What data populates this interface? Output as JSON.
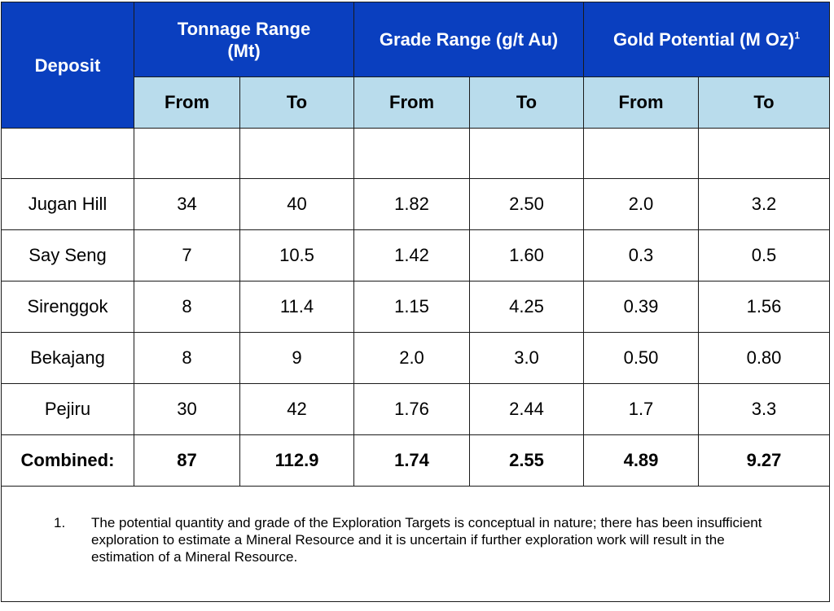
{
  "headers": {
    "deposit": "Deposit",
    "tonnage": "Tonnage Range (Mt)",
    "grade": "Grade Range (g/t Au)",
    "gold": "Gold Potential (M Oz)",
    "gold_sup": "1",
    "from": "From",
    "to": "To"
  },
  "rows": [
    {
      "deposit": "Jugan Hill",
      "t_from": "34",
      "t_to": "40",
      "g_from": "1.82",
      "g_to": "2.50",
      "au_from": "2.0",
      "au_to": "3.2"
    },
    {
      "deposit": "Say Seng",
      "t_from": "7",
      "t_to": "10.5",
      "g_from": "1.42",
      "g_to": "1.60",
      "au_from": "0.3",
      "au_to": "0.5"
    },
    {
      "deposit": "Sirenggok",
      "t_from": "8",
      "t_to": "11.4",
      "g_from": "1.15",
      "g_to": "4.25",
      "au_from": "0.39",
      "au_to": "1.56"
    },
    {
      "deposit": "Bekajang",
      "t_from": "8",
      "t_to": "9",
      "g_from": "2.0",
      "g_to": "3.0",
      "au_from": "0.50",
      "au_to": "0.80"
    },
    {
      "deposit": "Pejiru",
      "t_from": "30",
      "t_to": "42",
      "g_from": "1.76",
      "g_to": "2.44",
      "au_from": "1.7",
      "au_to": "3.3"
    }
  ],
  "combined": {
    "deposit": "Combined:",
    "t_from": "87",
    "t_to": "112.9",
    "g_from": "1.74",
    "g_to": "2.55",
    "au_from": "4.89",
    "au_to": "9.27"
  },
  "footnote": {
    "number": "1.",
    "text": "The potential quantity and grade of the Exploration Targets is conceptual in nature; there has been insufficient exploration to estimate a Mineral Resource and it is uncertain if further exploration work will result in the estimation of a Mineral Resource."
  },
  "colors": {
    "header_bg": "#0a3fbf",
    "subheader_bg": "#b9dcec"
  }
}
